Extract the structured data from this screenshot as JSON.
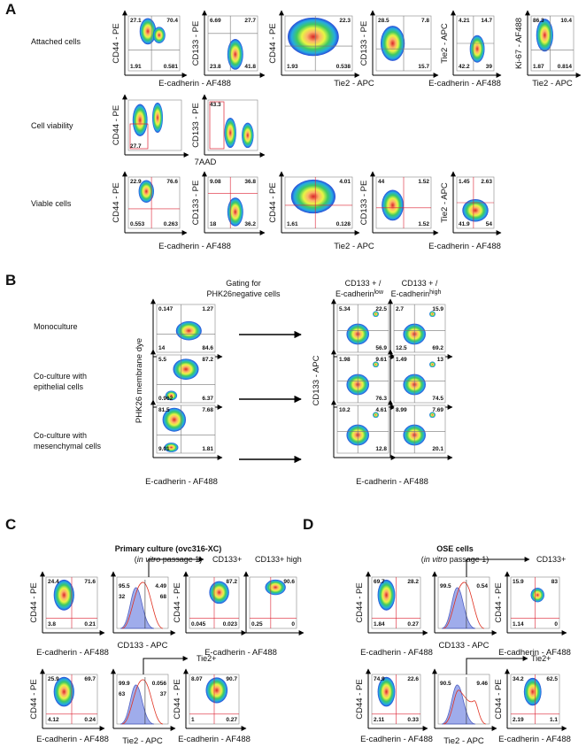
{
  "panel_a": {
    "letter": "A",
    "row_labels": [
      "Attached cells",
      "Cell viability",
      "Viable cells"
    ],
    "plots": [
      {
        "y_label": "CD44 - PE",
        "quadrants": [
          27.1,
          70.4,
          1.91,
          0.581
        ]
      },
      {
        "y_label": "CD133 - PE",
        "quadrants": [
          6.69,
          27.7,
          23.8,
          41.8
        ]
      },
      {
        "y_label": "CD44 - PE",
        "quadrants": [
          null,
          22.3,
          1.93,
          0.538
        ]
      },
      {
        "y_label": "CD133 - PE",
        "quadrants": [
          28.5,
          7.8,
          null,
          15.7
        ]
      },
      {
        "y_label": "Tie2 - APC",
        "quadrants": [
          4.21,
          14.7,
          42.2,
          39
        ]
      },
      {
        "y_label": "Ki-67 - AF488",
        "quadrants": [
          86.3,
          10.4,
          1.87,
          0.814
        ]
      },
      {
        "y_label": "CD44 - PE",
        "quadrants": [
          null,
          null,
          27.7,
          null
        ]
      },
      {
        "y_label": "CD133 - PE",
        "quadrants": [
          43.3,
          null,
          null,
          null
        ]
      },
      {
        "y_label": "CD44 - PE",
        "quadrants": [
          22.9,
          76.6,
          0.553,
          0.263
        ]
      },
      {
        "y_label": "CD133 - PE",
        "quadrants": [
          9.08,
          36.8,
          18,
          36.2
        ]
      },
      {
        "y_label": "CD44 - PE",
        "quadrants": [
          null,
          4.01,
          1.61,
          0.128
        ]
      },
      {
        "y_label": "CD133 - PE",
        "quadrants": [
          44,
          1.52,
          null,
          1.52
        ]
      },
      {
        "y_label": "Tie2 - APC",
        "quadrants": [
          1.45,
          2.63,
          41.9,
          54
        ]
      }
    ],
    "x_labels": [
      "E-cadherin - AF488",
      "Tie2 - APC",
      "E-cadherin - AF488",
      "Tie2 - APC",
      "7AAD",
      "E-cadherin - AF488",
      "Tie2 - APC",
      "E-cadherin - AF488"
    ]
  },
  "panel_b": {
    "letter": "B",
    "gating_header": [
      "Gating for",
      "PHK26negative cells"
    ],
    "col_headers": [
      {
        "line1": "CD133 + /",
        "line2": "E-cadherin",
        "sup": "low"
      },
      {
        "line1": "CD133 + /",
        "line2": "E-cadherin",
        "sup": "high"
      }
    ],
    "row_labels": [
      [
        "Monoculture"
      ],
      [
        "Co-culture with",
        "epithelial cells"
      ],
      [
        "Co-culture with",
        "mesenchymal cells"
      ]
    ],
    "left_y_label": "PHK26 membrane dye",
    "left_x_label": "E-cadherin - AF488",
    "right_y_label": "CD133 - APC",
    "right_x_label": "E-cadherin - AF488",
    "left_plots": [
      {
        "quadrants": [
          0.147,
          1.27,
          14,
          84.6
        ]
      },
      {
        "quadrants": [
          5.5,
          87.2,
          0.962,
          6.37
        ]
      },
      {
        "quadrants": [
          81.5,
          7.68,
          9.01,
          1.81
        ]
      }
    ],
    "right_plots": [
      {
        "quadrants": [
          5.34,
          22.5,
          null,
          56.9
        ]
      },
      {
        "quadrants": [
          2.7,
          15.9,
          12.5,
          69.2
        ]
      },
      {
        "quadrants": [
          1.98,
          9.61,
          null,
          76.3
        ]
      },
      {
        "quadrants": [
          1.49,
          13,
          null,
          74.5
        ]
      },
      {
        "quadrants": [
          10.2,
          4.61,
          null,
          12.8
        ]
      },
      {
        "quadrants": [
          8.99,
          7.69,
          null,
          20.1
        ]
      }
    ]
  },
  "panel_c": {
    "letter": "C",
    "title": "Primary culture (ovc316-XC)",
    "subtitle": {
      "open": "(",
      "em": "in vitro",
      "close": " passage 1)"
    },
    "dot_plots": [
      {
        "y_label": "CD44 - PE",
        "quadrants": [
          24.4,
          71.6,
          3.8,
          0.21
        ]
      },
      {
        "y_label": "CD44 - PE",
        "quadrants": [
          null,
          87.2,
          0.045,
          0.023
        ]
      },
      {
        "quadrants": [
          null,
          90.6,
          0.25,
          0
        ]
      },
      {
        "y_label": "CD44 - PE",
        "quadrants": [
          25.9,
          69.7,
          4.12,
          0.24
        ]
      },
      {
        "y_label": "CD44 - PE",
        "quadrants": [
          8.07,
          90.7,
          1,
          0.27
        ]
      }
    ],
    "histograms": [
      {
        "x_label": "CD133 - APC",
        "quadrants": [
          95.5,
          4.49,
          32,
          68
        ]
      },
      {
        "x_label": "Tie2 - APC",
        "quadrants": [
          99.9,
          0.056,
          63,
          37
        ]
      }
    ],
    "gates": [
      "CD133+",
      "CD133+ high",
      "Tie2+"
    ],
    "x_labels": [
      "E-cadherin - AF488",
      "E-cadherin - AF488",
      "E-cadherin - AF488",
      "E-cadherin - AF488"
    ]
  },
  "panel_d": {
    "letter": "D",
    "title": "OSE cells",
    "subtitle": {
      "open": "(",
      "em": "in vitro",
      "close": " passage 1)"
    },
    "dot_plots": [
      {
        "y_label": "CD44 - PE",
        "quadrants": [
          69.7,
          28.2,
          1.84,
          0.27
        ]
      },
      {
        "y_label": "CD44 - PE",
        "quadrants": [
          15.9,
          83,
          1.14,
          0
        ]
      },
      {
        "y_label": "CD44 - PE",
        "quadrants": [
          74.9,
          22.6,
          2.11,
          0.33
        ]
      },
      {
        "y_label": "CD44 - PE",
        "quadrants": [
          34.2,
          62.5,
          2.19,
          1.1
        ]
      }
    ],
    "histograms": [
      {
        "x_label": "CD133 - APC",
        "quadrants": [
          99.5,
          0.54,
          null,
          null
        ]
      },
      {
        "x_label": "Tie2 - APC",
        "quadrants": [
          90.5,
          9.46,
          null,
          null
        ]
      }
    ],
    "gates": [
      "CD133+",
      "Tie2+"
    ],
    "x_labels": [
      "E-cadherin - AF488",
      "E-cadherin - AF488",
      "E-cadherin - AF488",
      "E-cadherin - AF488"
    ]
  }
}
